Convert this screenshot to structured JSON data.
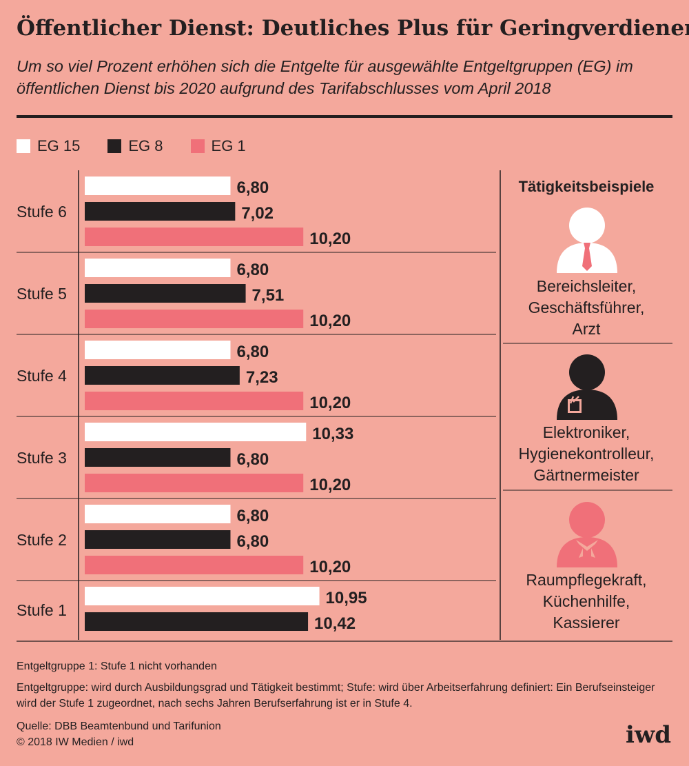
{
  "title": "Öffentlicher Dienst: Deutliches Plus für Geringverdiener",
  "subtitle": "Um so viel Prozent erhöhen sich die Entgelte für ausgewählte Entgeltgruppen (EG) im öffentlichen Dienst bis 2020 aufgrund des Tarifabschlusses vom April 2018",
  "colors": {
    "background": "#f4a89c",
    "eg15": "#ffffff",
    "eg8": "#231f20",
    "eg1": "#f07079",
    "rule": "#231f20"
  },
  "legend": [
    {
      "label": "EG 15",
      "color": "#ffffff"
    },
    {
      "label": "EG 8",
      "color": "#231f20"
    },
    {
      "label": "EG 1",
      "color": "#f07079"
    }
  ],
  "chart_data": {
    "type": "bar",
    "orientation": "horizontal",
    "categories": [
      "Stufe 6",
      "Stufe 5",
      "Stufe 4",
      "Stufe 3",
      "Stufe 2",
      "Stufe 1"
    ],
    "series": [
      {
        "name": "EG 15",
        "values": [
          6.8,
          6.8,
          6.8,
          10.33,
          6.8,
          10.95
        ],
        "labels": [
          "6,80",
          "6,80",
          "6,80",
          "10,33",
          "6,80",
          "10,95"
        ]
      },
      {
        "name": "EG 8",
        "values": [
          7.02,
          7.51,
          7.23,
          6.8,
          6.8,
          10.42
        ],
        "labels": [
          "7,02",
          "7,51",
          "7,23",
          "6,80",
          "6,80",
          "10,42"
        ]
      },
      {
        "name": "EG 1",
        "values": [
          10.2,
          10.2,
          10.2,
          10.2,
          10.2,
          null
        ],
        "labels": [
          "10,20",
          "10,20",
          "10,20",
          "10,20",
          "10,20",
          ""
        ]
      }
    ],
    "xlim": [
      0,
      12
    ],
    "grid": false,
    "legend_position": "top-left"
  },
  "examples": {
    "title": "Tätigkeitsbeispiele",
    "items": [
      {
        "text": "Bereichsleiter,\nGeschäftsführer,\nArzt",
        "icon": "person-white-tie-icon"
      },
      {
        "text": "Elektroniker,\nHygienekontrolleur,\nGärtnermeister",
        "icon": "person-black-pocket-icon"
      },
      {
        "text": "Raumpflegekraft,\nKüchenhilfe,\nKassierer",
        "icon": "person-pink-neckerchief-icon"
      }
    ]
  },
  "notes": {
    "note1": "Entgeltgruppe 1: Stufe 1 nicht vorhanden",
    "note2": "Entgeltgruppe: wird durch Ausbildungsgrad und Tätigkeit bestimmt; Stufe: wird über Arbeitserfahrung definiert: Ein Berufseinsteiger wird der Stufe 1 zugeordnet, nach sechs Jahren Berufserfahrung ist er in Stufe 4.",
    "source": "Quelle: DBB Beamtenbund und Tarifunion",
    "copyright": "© 2018 IW Medien / iwd"
  },
  "logo": "iwd"
}
